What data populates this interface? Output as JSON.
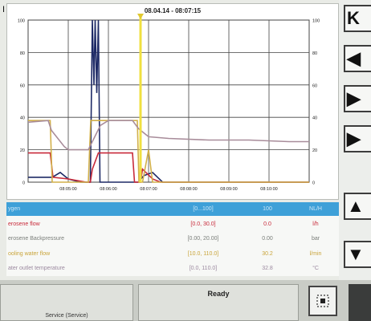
{
  "corner_mark": "I",
  "chart": {
    "title": "08.04.14 - 08:07:15"
  },
  "chart_data": {
    "type": "line",
    "title": "08.04.14 - 08:07:15",
    "x_tick_labels": [
      "08:05:00",
      "08:06:00",
      "08:07:00",
      "08:08:00",
      "08:09:00",
      "08:10:00"
    ],
    "y_left_ticks": [
      0,
      20,
      40,
      60,
      80,
      100
    ],
    "y_right_ticks": [
      0,
      20,
      40,
      60,
      80,
      100
    ],
    "xlim": [
      0,
      7
    ],
    "ylim": [
      0,
      100
    ],
    "cursor_x": 2.8,
    "grid": true,
    "series": [
      {
        "color": "#1e2a66",
        "points": [
          [
            0,
            3
          ],
          [
            0.6,
            3
          ],
          [
            0.8,
            6
          ],
          [
            1.0,
            2
          ],
          [
            1.3,
            0
          ],
          [
            1.55,
            0
          ],
          [
            1.6,
            100
          ],
          [
            1.64,
            60
          ],
          [
            1.67,
            100
          ],
          [
            1.71,
            55
          ],
          [
            1.75,
            100
          ],
          [
            1.79,
            0
          ],
          [
            1.85,
            0
          ],
          [
            2.5,
            0
          ],
          [
            2.75,
            0
          ],
          [
            2.88,
            4
          ],
          [
            3.1,
            6
          ],
          [
            3.35,
            0
          ],
          [
            7,
            0
          ]
        ]
      },
      {
        "color": "#c82a3a",
        "points": [
          [
            0,
            18
          ],
          [
            0.55,
            18
          ],
          [
            0.62,
            3
          ],
          [
            1.0,
            2
          ],
          [
            1.45,
            0
          ],
          [
            1.55,
            0
          ],
          [
            1.6,
            8
          ],
          [
            1.75,
            18
          ],
          [
            2.6,
            18
          ],
          [
            2.65,
            0
          ],
          [
            2.8,
            0
          ],
          [
            2.85,
            8
          ],
          [
            3.1,
            2
          ],
          [
            3.3,
            0
          ],
          [
            7,
            0
          ]
        ]
      },
      {
        "color": "#d2b04a",
        "points": [
          [
            0,
            38
          ],
          [
            0.55,
            38
          ],
          [
            0.6,
            0
          ],
          [
            1.5,
            0
          ],
          [
            1.56,
            38
          ],
          [
            2.72,
            38
          ],
          [
            2.76,
            0
          ],
          [
            2.85,
            0
          ],
          [
            3.0,
            20
          ],
          [
            3.1,
            0
          ],
          [
            7,
            0
          ]
        ]
      },
      {
        "color": "#a88c9a",
        "points": [
          [
            0,
            37
          ],
          [
            0.5,
            38
          ],
          [
            0.58,
            32
          ],
          [
            0.9,
            22
          ],
          [
            1.0,
            20
          ],
          [
            1.5,
            20
          ],
          [
            1.8,
            35
          ],
          [
            2.0,
            38
          ],
          [
            2.6,
            38
          ],
          [
            2.75,
            33
          ],
          [
            3.0,
            28
          ],
          [
            3.5,
            27
          ],
          [
            4.5,
            26
          ],
          [
            5.5,
            26
          ],
          [
            6.5,
            25
          ],
          [
            7,
            25
          ]
        ]
      }
    ]
  },
  "nav_buttons": [
    {
      "glyph": "K"
    },
    {
      "glyph": "◀"
    },
    {
      "glyph": "▶"
    },
    {
      "glyph": "▶"
    },
    {
      "glyph": "▲"
    },
    {
      "glyph": "▼"
    }
  ],
  "table": {
    "header": {
      "name": "ygen",
      "range": "[0...100]",
      "val": "100",
      "unit": "NL/H"
    },
    "rows": [
      {
        "name": "erosene flow",
        "range": "[0.0, 30.0]",
        "val": "0.0",
        "unit": "l/h",
        "color": "#c82a3a"
      },
      {
        "name": "erosene Backpressure",
        "range": "[0.00, 20.00]",
        "val": "0.00",
        "unit": "bar",
        "color": "#7a7e7a"
      },
      {
        "name": "ooling water flow",
        "range": "[10.0, 110.0]",
        "val": "30.2",
        "unit": "l/min",
        "color": "#c9a43a"
      },
      {
        "name": "ater outlet temperature",
        "range": "[0.0, 110.0]",
        "val": "32.8",
        "unit": "°C",
        "color": "#9c8aa0"
      }
    ]
  },
  "bottom": {
    "status": "Ready",
    "service": "Service (Service)"
  }
}
